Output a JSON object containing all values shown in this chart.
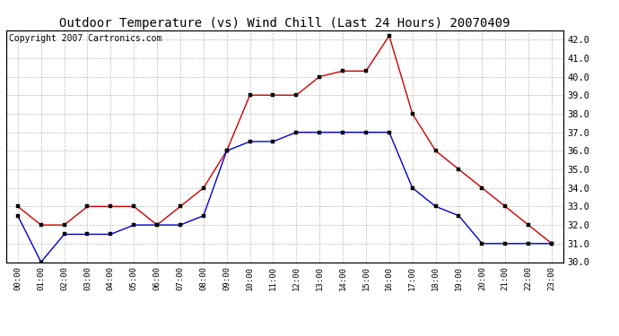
{
  "title": "Outdoor Temperature (vs) Wind Chill (Last 24 Hours) 20070409",
  "copyright_text": "Copyright 2007 Cartronics.com",
  "hours": [
    "00:00",
    "01:00",
    "02:00",
    "03:00",
    "04:00",
    "05:00",
    "06:00",
    "07:00",
    "08:00",
    "09:00",
    "10:00",
    "11:00",
    "12:00",
    "13:00",
    "14:00",
    "15:00",
    "16:00",
    "17:00",
    "18:00",
    "19:00",
    "20:00",
    "21:00",
    "22:00",
    "23:00"
  ],
  "temp_red": [
    33.0,
    32.0,
    32.0,
    33.0,
    33.0,
    33.0,
    32.0,
    33.0,
    34.0,
    36.0,
    39.0,
    39.0,
    39.0,
    40.0,
    40.3,
    40.3,
    42.2,
    38.0,
    36.0,
    35.0,
    34.0,
    33.0,
    32.0,
    31.0
  ],
  "temp_blue": [
    32.5,
    30.0,
    31.5,
    31.5,
    31.5,
    32.0,
    32.0,
    32.0,
    32.5,
    36.0,
    36.5,
    36.5,
    37.0,
    37.0,
    37.0,
    37.0,
    37.0,
    34.0,
    33.0,
    32.5,
    31.0,
    31.0,
    31.0,
    31.0
  ],
  "ylim": [
    30.0,
    42.5
  ],
  "yticks": [
    30.0,
    31.0,
    32.0,
    33.0,
    34.0,
    35.0,
    36.0,
    37.0,
    38.0,
    39.0,
    40.0,
    41.0,
    42.0
  ],
  "red_color": "#cc0000",
  "blue_color": "#0000cc",
  "bg_color": "#ffffff",
  "plot_bg_color": "#ffffff",
  "grid_color": "#bbbbbb",
  "title_fontsize": 10,
  "copyright_fontsize": 7
}
